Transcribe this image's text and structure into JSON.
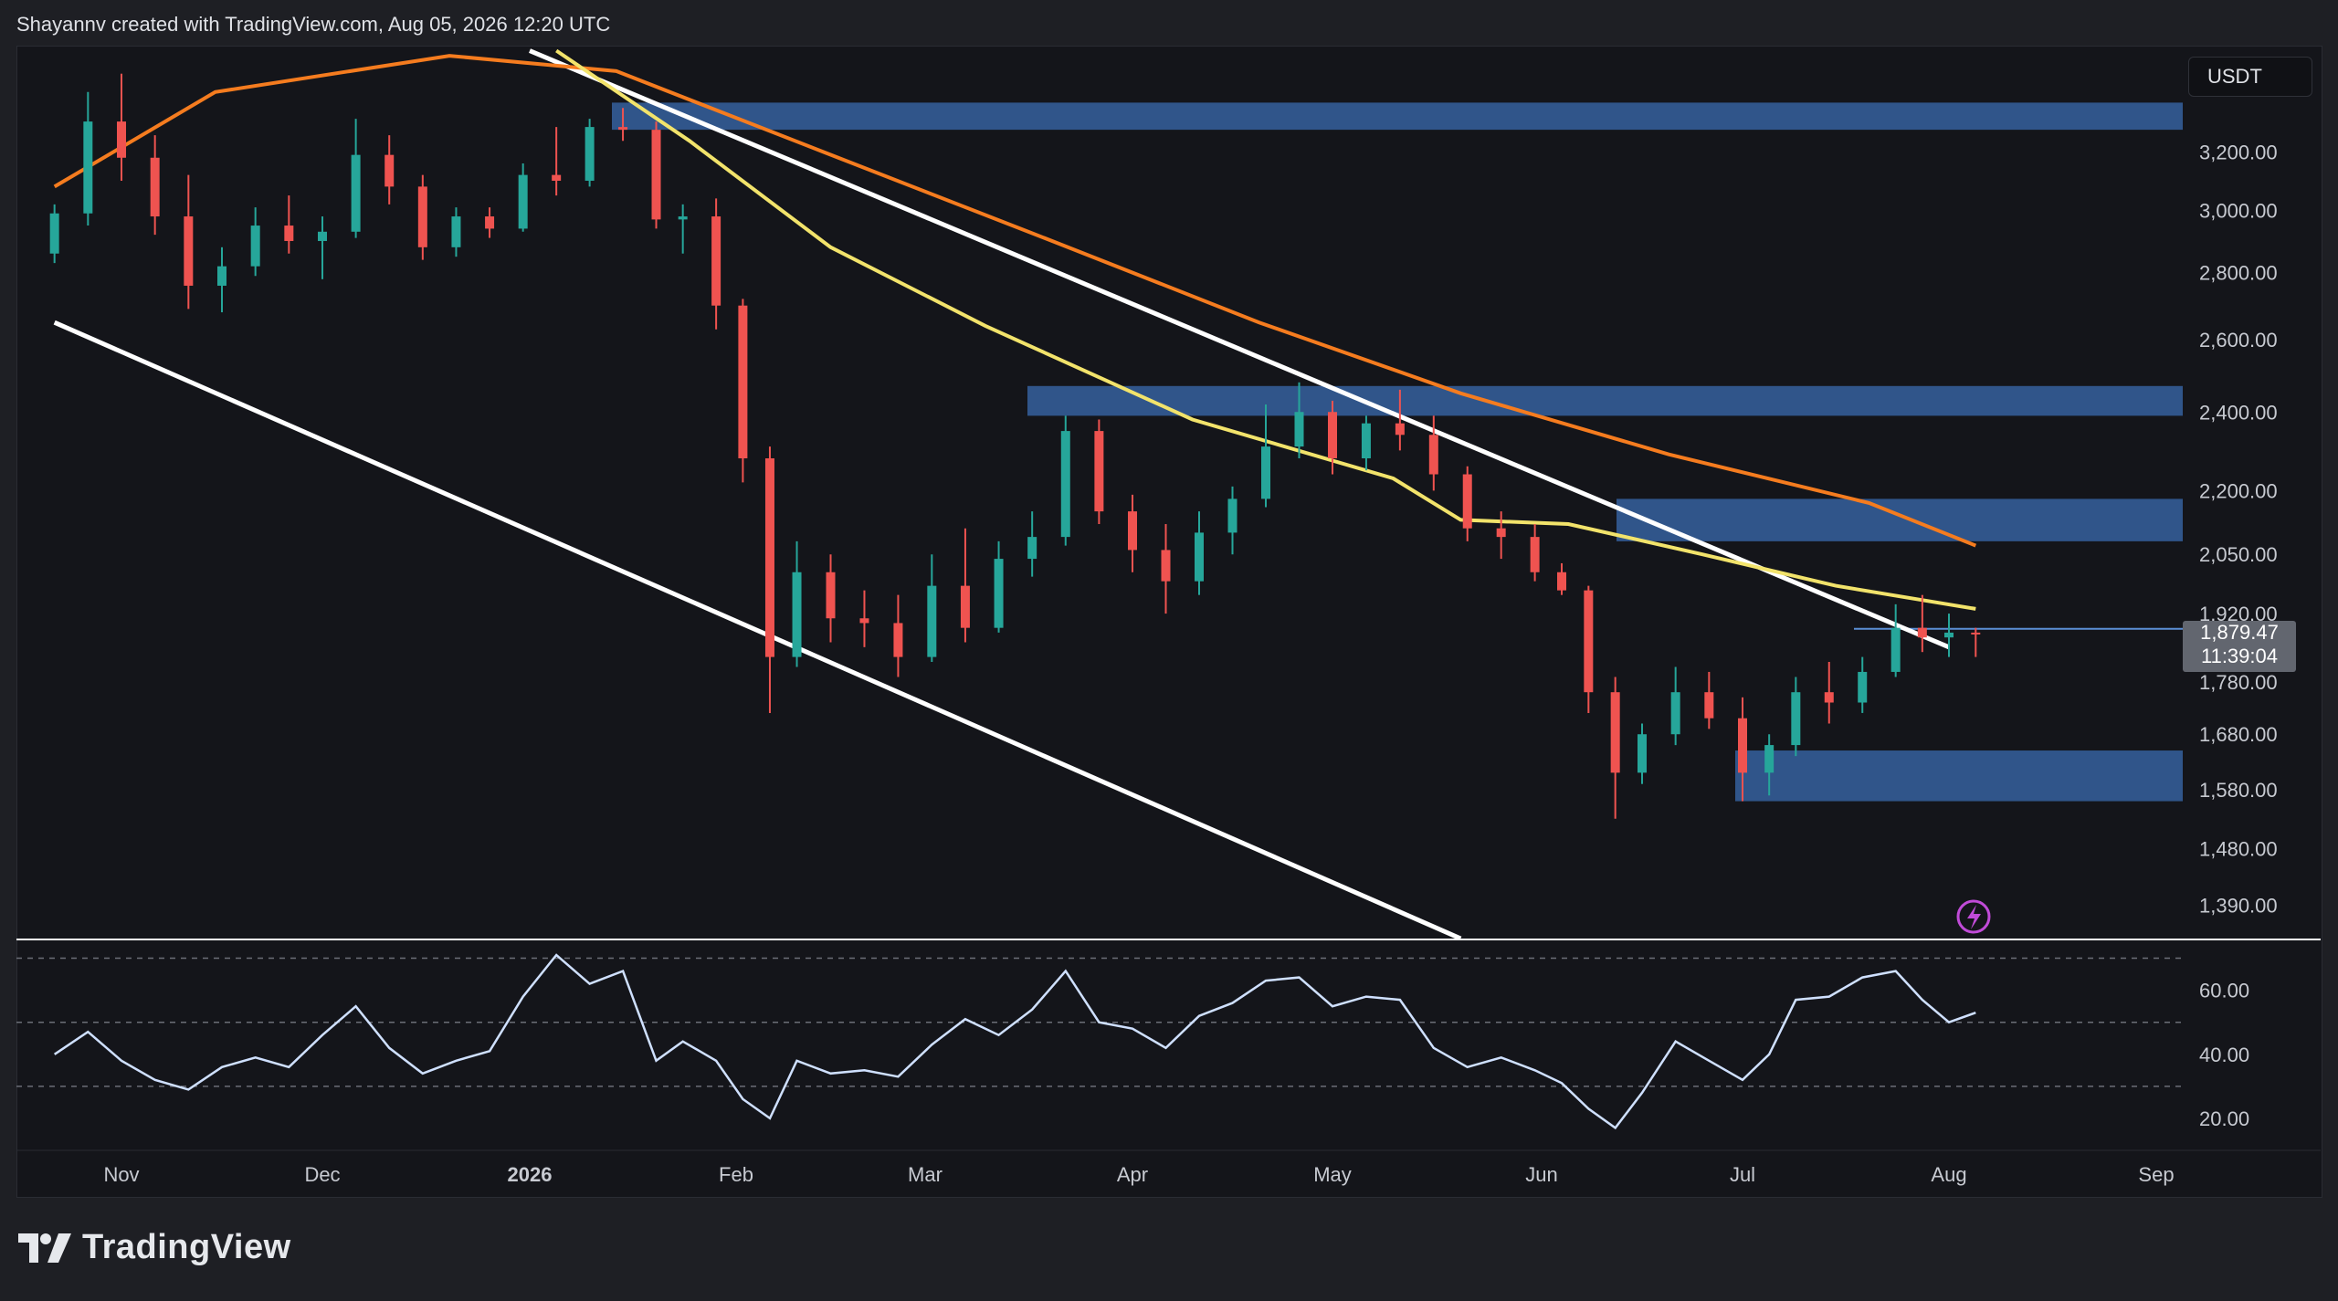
{
  "attribution": "Shayannv created with TradingView.com, Aug 05, 2026 12:20 UTC",
  "brand": {
    "name": "TradingView"
  },
  "currency": "USDT",
  "last_price": "1,879.47",
  "countdown": "11:39:04",
  "colors": {
    "up": "#26a69a",
    "down": "#ef5350",
    "ma200": "#f57c1f",
    "ma100": "#f2e36b",
    "zone": "#3b6fb6",
    "rsi": "#cfe0ff",
    "trendline": "#ffffff",
    "alert": "#c14bd8"
  },
  "chart_data": [
    {
      "type": "line",
      "title": "",
      "x_ticks": [
        "Nov",
        "Dec",
        "2026",
        "Feb",
        "Mar",
        "Apr",
        "May",
        "Jun",
        "Jul",
        "Aug",
        "Sep"
      ],
      "y_ticks": [
        "3,200.00",
        "3,000.00",
        "2,800.00",
        "2,600.00",
        "2,400.00",
        "2,200.00",
        "2,050.00",
        "1,920.00",
        "1,780.00",
        "1,680.00",
        "1,580.00",
        "1,480.00",
        "1,390.00"
      ],
      "ylim": [
        1340,
        3600
      ],
      "y_scale": "log",
      "series": [
        {
          "values": [
            [
              "Oct 22",
              2860,
              3020,
              2830,
              2990
            ],
            [
              "Oct 27",
              2990,
              3420,
              2950,
              3310
            ],
            [
              "Nov 1",
              3310,
              3490,
              3100,
              3180
            ],
            [
              "Nov 6",
              3180,
              3260,
              2920,
              2980
            ],
            [
              "Nov 11",
              2980,
              3120,
              2690,
              2760
            ],
            [
              "Nov 16",
              2760,
              2880,
              2680,
              2820
            ],
            [
              "Nov 21",
              2820,
              3010,
              2790,
              2950
            ],
            [
              "Nov 26",
              2950,
              3050,
              2860,
              2900
            ],
            [
              "Dec 1",
              2900,
              2980,
              2780,
              2930
            ],
            [
              "Dec 6",
              2930,
              3320,
              2910,
              3190
            ],
            [
              "Dec 11",
              3190,
              3260,
              3020,
              3080
            ],
            [
              "Dec 16",
              3080,
              3120,
              2840,
              2880
            ],
            [
              "Dec 21",
              2880,
              3010,
              2850,
              2980
            ],
            [
              "Dec 26",
              2980,
              3010,
              2910,
              2940
            ],
            [
              "Dec 31",
              2940,
              3160,
              2930,
              3120
            ],
            [
              "Jan 5",
              3120,
              3290,
              3050,
              3100
            ],
            [
              "Jan 10",
              3100,
              3320,
              3080,
              3290
            ],
            [
              "Jan 15",
              3290,
              3360,
              3240,
              3280
            ],
            [
              "Jan 20",
              3280,
              3310,
              2940,
              2970
            ],
            [
              "Jan 24",
              2970,
              3020,
              2860,
              2980
            ],
            [
              "Jan 29",
              2980,
              3040,
              2630,
              2700
            ],
            [
              "Feb 2",
              2700,
              2720,
              2220,
              2280
            ],
            [
              "Feb 6",
              2280,
              2310,
              1720,
              1830
            ],
            [
              "Feb 10",
              1830,
              2080,
              1810,
              2010
            ],
            [
              "Feb 15",
              2010,
              2050,
              1860,
              1910
            ],
            [
              "Feb 20",
              1910,
              1970,
              1850,
              1900
            ],
            [
              "Feb 25",
              1900,
              1960,
              1790,
              1830
            ],
            [
              "Mar 2",
              1830,
              2050,
              1820,
              1980
            ],
            [
              "Mar 7",
              1980,
              2110,
              1860,
              1890
            ],
            [
              "Mar 12",
              1890,
              2080,
              1880,
              2040
            ],
            [
              "Mar 17",
              2040,
              2150,
              2000,
              2090
            ],
            [
              "Mar 22",
              2090,
              2390,
              2070,
              2350
            ],
            [
              "Mar 27",
              2350,
              2380,
              2120,
              2150
            ],
            [
              "Apr 1",
              2150,
              2190,
              2010,
              2060
            ],
            [
              "Apr 6",
              2060,
              2120,
              1920,
              1990
            ],
            [
              "Apr 11",
              1990,
              2150,
              1960,
              2100
            ],
            [
              "Apr 16",
              2100,
              2210,
              2050,
              2180
            ],
            [
              "Apr 21",
              2180,
              2420,
              2160,
              2310
            ],
            [
              "Apr 26",
              2310,
              2480,
              2280,
              2400
            ],
            [
              "May 1",
              2400,
              2430,
              2240,
              2280
            ],
            [
              "May 6",
              2280,
              2390,
              2250,
              2370
            ],
            [
              "May 11",
              2370,
              2460,
              2300,
              2340
            ],
            [
              "May 16",
              2340,
              2390,
              2200,
              2240
            ],
            [
              "May 21",
              2240,
              2260,
              2080,
              2110
            ],
            [
              "May 26",
              2110,
              2150,
              2040,
              2090
            ],
            [
              "May 31",
              2090,
              2120,
              1990,
              2010
            ],
            [
              "Jun 4",
              2010,
              2030,
              1960,
              1970
            ],
            [
              "Jun 8",
              1970,
              1980,
              1720,
              1760
            ],
            [
              "Jun 12",
              1760,
              1790,
              1530,
              1610
            ],
            [
              "Jun 16",
              1610,
              1700,
              1590,
              1680
            ],
            [
              "Jun 21",
              1680,
              1810,
              1660,
              1760
            ],
            [
              "Jun 26",
              1760,
              1800,
              1690,
              1710
            ],
            [
              "Jul 1",
              1710,
              1750,
              1560,
              1610
            ],
            [
              "Jul 5",
              1610,
              1680,
              1570,
              1660
            ],
            [
              "Jul 9",
              1660,
              1790,
              1640,
              1760
            ],
            [
              "Jul 14",
              1760,
              1820,
              1700,
              1740
            ],
            [
              "Jul 19",
              1740,
              1830,
              1720,
              1800
            ],
            [
              "Jul 24",
              1800,
              1940,
              1790,
              1890
            ],
            [
              "Jul 28",
              1890,
              1960,
              1840,
              1870
            ],
            [
              "Aug 1",
              1870,
              1920,
              1830,
              1880
            ],
            [
              "Aug 5",
              1880,
              1890,
              1830,
              1879
            ]
          ]
        },
        {
          "values": [
            [
              "Oct 22",
              3080
            ],
            [
              "Nov 15",
              3420
            ],
            [
              "Dec 20",
              3560
            ],
            [
              "Jan 14",
              3500
            ],
            [
              "Feb 14",
              3200
            ],
            [
              "Mar 20",
              2900
            ],
            [
              "Apr 20",
              2650
            ],
            [
              "May 20",
              2450
            ],
            [
              "Jun 20",
              2290
            ],
            [
              "Jul 20",
              2170
            ],
            [
              "Aug 5",
              2070
            ]
          ]
        },
        {
          "values": [
            [
              "Jan 5",
              3580
            ],
            [
              "Jan 25",
              3240
            ],
            [
              "Feb 15",
              2880
            ],
            [
              "Mar 10",
              2640
            ],
            [
              "Apr 10",
              2380
            ],
            [
              "May 10",
              2230
            ],
            [
              "May 20",
              2130
            ],
            [
              "Jun 5",
              2120
            ],
            [
              "Jun 25",
              2050
            ],
            [
              "Jul 15",
              1980
            ],
            [
              "Aug 5",
              1930
            ]
          ]
        }
      ],
      "zones": [
        [
          3280,
          3380
        ],
        [
          2390,
          2470
        ],
        [
          2080,
          2180
        ],
        [
          1560,
          1650
        ]
      ],
      "support_level": 1888,
      "trendlines": [
        {
          "from": [
            "Oct 22",
            2650
          ],
          "to": [
            "May 20",
            1340
          ]
        },
        {
          "from": [
            "Jan 1",
            3580
          ],
          "to": [
            "Aug 1",
            1850
          ]
        }
      ]
    },
    {
      "type": "line",
      "title": "",
      "y_ticks": [
        "60.00",
        "40.00",
        "20.00"
      ],
      "ylim": [
        10,
        75
      ],
      "levels": [
        70,
        50,
        30
      ],
      "series": [
        {
          "values": [
            [
              "Oct 22",
              40
            ],
            [
              "Oct 27",
              47
            ],
            [
              "Nov 1",
              38
            ],
            [
              "Nov 6",
              32
            ],
            [
              "Nov 11",
              29
            ],
            [
              "Nov 16",
              36
            ],
            [
              "Nov 21",
              39
            ],
            [
              "Nov 26",
              36
            ],
            [
              "Dec 1",
              46
            ],
            [
              "Dec 6",
              55
            ],
            [
              "Dec 11",
              42
            ],
            [
              "Dec 16",
              34
            ],
            [
              "Dec 21",
              38
            ],
            [
              "Dec 26",
              41
            ],
            [
              "Dec 31",
              58
            ],
            [
              "Jan 5",
              71
            ],
            [
              "Jan 10",
              62
            ],
            [
              "Jan 15",
              66
            ],
            [
              "Jan 20",
              38
            ],
            [
              "Jan 24",
              44
            ],
            [
              "Jan 29",
              38
            ],
            [
              "Feb 2",
              26
            ],
            [
              "Feb 6",
              20
            ],
            [
              "Feb 10",
              38
            ],
            [
              "Feb 15",
              34
            ],
            [
              "Feb 20",
              35
            ],
            [
              "Feb 25",
              33
            ],
            [
              "Mar 2",
              43
            ],
            [
              "Mar 7",
              51
            ],
            [
              "Mar 12",
              46
            ],
            [
              "Mar 17",
              54
            ],
            [
              "Mar 22",
              66
            ],
            [
              "Mar 27",
              50
            ],
            [
              "Apr 1",
              48
            ],
            [
              "Apr 6",
              42
            ],
            [
              "Apr 11",
              52
            ],
            [
              "Apr 16",
              56
            ],
            [
              "Apr 21",
              63
            ],
            [
              "Apr 26",
              64
            ],
            [
              "May 1",
              55
            ],
            [
              "May 6",
              58
            ],
            [
              "May 11",
              57
            ],
            [
              "May 16",
              42
            ],
            [
              "May 21",
              36
            ],
            [
              "May 26",
              39
            ],
            [
              "May 31",
              35
            ],
            [
              "Jun 4",
              31
            ],
            [
              "Jun 8",
              23
            ],
            [
              "Jun 12",
              17
            ],
            [
              "Jun 16",
              28
            ],
            [
              "Jun 21",
              44
            ],
            [
              "Jun 26",
              38
            ],
            [
              "Jul 1",
              32
            ],
            [
              "Jul 5",
              40
            ],
            [
              "Jul 9",
              57
            ],
            [
              "Jul 14",
              58
            ],
            [
              "Jul 19",
              64
            ],
            [
              "Jul 24",
              66
            ],
            [
              "Jul 28",
              57
            ],
            [
              "Aug 1",
              50
            ],
            [
              "Aug 5",
              53
            ]
          ]
        }
      ]
    }
  ]
}
